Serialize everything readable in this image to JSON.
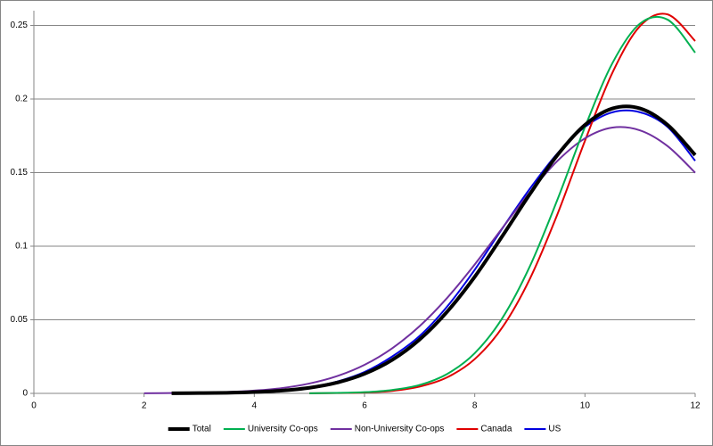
{
  "chart_data": {
    "type": "line",
    "x": [
      2,
      2.5,
      3,
      3.5,
      4,
      4.5,
      5,
      5.5,
      6,
      6.5,
      7,
      7.5,
      8,
      8.5,
      9,
      9.5,
      10,
      10.5,
      11,
      11.5,
      12
    ],
    "series": [
      {
        "name": "Total",
        "color": "#000000",
        "line_width": 4,
        "values": [
          null,
          0.0001,
          0.0002,
          0.0004,
          0.0009,
          0.0019,
          0.0038,
          0.0073,
          0.0133,
          0.0227,
          0.0366,
          0.0555,
          0.0792,
          0.1068,
          0.1354,
          0.1619,
          0.1824,
          0.1936,
          0.1936,
          0.1824,
          0.1619
        ]
      },
      {
        "name": "University Co-ops",
        "color": "#00b050",
        "line_width": 2,
        "values": [
          null,
          null,
          null,
          null,
          null,
          null,
          0.0001,
          0.0003,
          0.0008,
          0.0023,
          0.0057,
          0.0132,
          0.0273,
          0.0511,
          0.0863,
          0.1316,
          0.1809,
          0.2245,
          0.2513,
          0.2539,
          0.2315
        ]
      },
      {
        "name": "Non-University Co-ops",
        "color": "#7030a0",
        "line_width": 2,
        "values": [
          0.0001,
          0.0002,
          0.0004,
          0.0009,
          0.0019,
          0.0036,
          0.0067,
          0.0117,
          0.0194,
          0.0306,
          0.0457,
          0.0649,
          0.0876,
          0.1123,
          0.1366,
          0.1579,
          0.1733,
          0.1806,
          0.1787,
          0.168,
          0.1499
        ]
      },
      {
        "name": "Canada",
        "color": "#e00000",
        "line_width": 2,
        "values": [
          null,
          null,
          null,
          null,
          null,
          null,
          0.0001,
          0.0002,
          0.0006,
          0.0017,
          0.0046,
          0.0109,
          0.0233,
          0.0448,
          0.0778,
          0.1217,
          0.1716,
          0.218,
          0.2496,
          0.2575,
          0.2394
        ]
      },
      {
        "name": "US",
        "color": "#0000e0",
        "line_width": 2,
        "values": [
          null,
          0.0001,
          0.0002,
          0.0005,
          0.001,
          0.0021,
          0.0042,
          0.008,
          0.0145,
          0.025,
          0.039,
          0.059,
          0.084,
          0.112,
          0.139,
          0.163,
          0.181,
          0.191,
          0.191,
          0.181,
          0.158
        ]
      }
    ],
    "xlim": [
      0,
      12
    ],
    "xticks": [
      0,
      2,
      4,
      6,
      8,
      10,
      12
    ],
    "ylim": [
      0,
      0.26
    ],
    "yticks": [
      0,
      0.05,
      0.1,
      0.15,
      0.2,
      0.25
    ],
    "grid": true,
    "legend": "bottom"
  }
}
